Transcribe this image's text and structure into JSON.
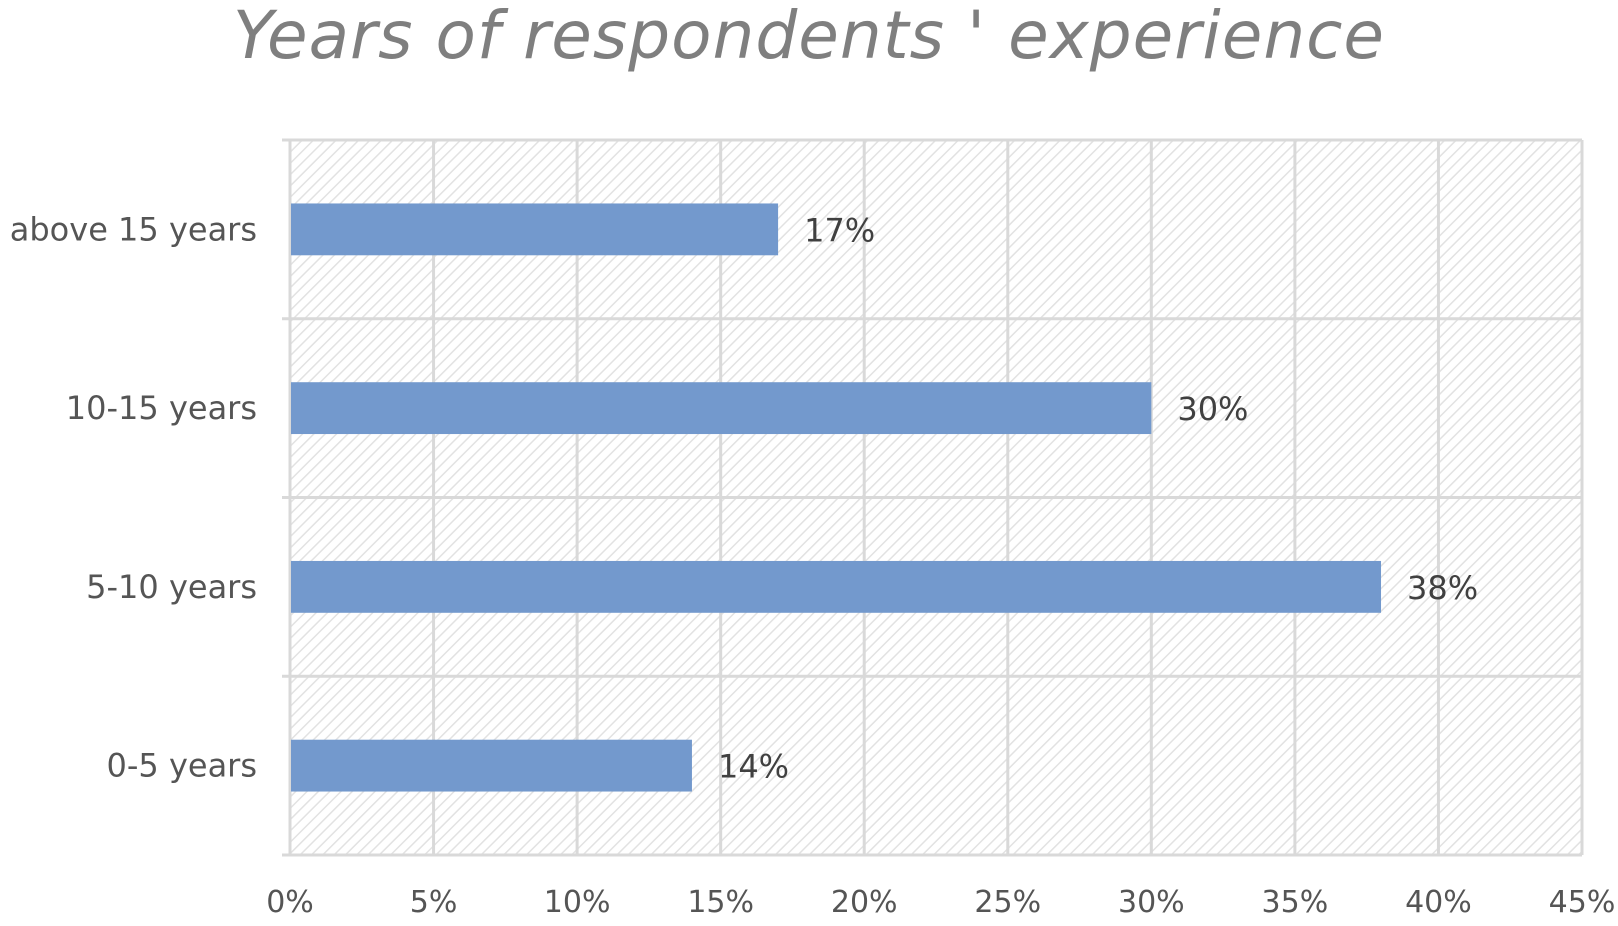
{
  "chart_data": {
    "type": "bar",
    "orientation": "horizontal",
    "title": "Years of respondents ' experience",
    "categories": [
      "above 15 years",
      "10-15 years",
      "5-10 years",
      "0-5 years"
    ],
    "values": [
      17,
      30,
      38,
      14
    ],
    "data_labels": [
      "17%",
      "30%",
      "38%",
      "14%"
    ],
    "xlabel": "",
    "ylabel": "",
    "xlim": [
      0,
      45
    ],
    "x_ticks": [
      0,
      5,
      10,
      15,
      20,
      25,
      30,
      35,
      40,
      45
    ],
    "x_tick_labels": [
      "0%",
      "5%",
      "10%",
      "15%",
      "20%",
      "25%",
      "30%",
      "35%",
      "40%",
      "45%"
    ],
    "grid": true,
    "legend": "none",
    "colors": {
      "bar": "#7399cd",
      "grid": "#d9d9d9",
      "hatch": "#e4e4e4",
      "title": "#7f7f7f",
      "text": "#555555"
    }
  }
}
